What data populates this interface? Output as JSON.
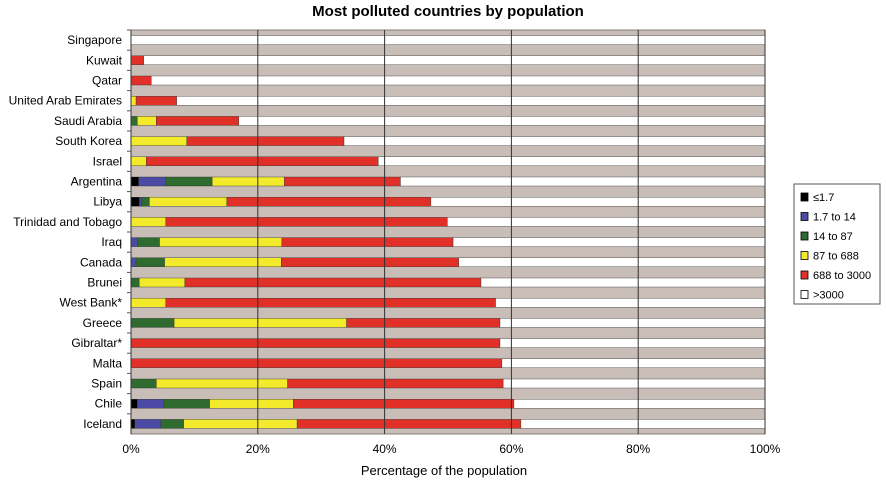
{
  "chart_data": {
    "type": "bar",
    "orientation": "horizontal",
    "stacked": true,
    "title": "Most polluted countries by population",
    "xlabel": "Percentage of the population",
    "ylabel": "",
    "xlim": [
      0,
      100
    ],
    "xticks": [
      "0%",
      "20%",
      "40%",
      "60%",
      "80%",
      "100%"
    ],
    "grid": true,
    "plot_background": "#c8bdb7",
    "legend_position": "right",
    "categories": [
      "Singapore",
      "Kuwait",
      "Qatar",
      "United Arab Emirates",
      "Saudi Arabia",
      "South Korea",
      "Israel",
      "Argentina",
      "Libya",
      "Trinidad and Tobago",
      "Iraq",
      "Canada",
      "Brunei",
      "West Bank*",
      "Greece",
      "Gibraltar*",
      "Malta",
      "Spain",
      "Chile",
      "Iceland"
    ],
    "series": [
      {
        "name": "≤1.7",
        "color": "#000000",
        "values": [
          0,
          0,
          0,
          0,
          0,
          0,
          0,
          1.2,
          1.3,
          0,
          0,
          0,
          0,
          0,
          0,
          0,
          0,
          0,
          1.0,
          0.6
        ]
      },
      {
        "name": "1.7 to 14",
        "color": "#4b4ba6",
        "values": [
          0,
          0,
          0,
          0,
          0,
          0,
          0,
          4.2,
          0.3,
          0,
          1.0,
          0.8,
          0,
          0,
          0,
          0,
          0,
          0,
          4.2,
          4.1
        ]
      },
      {
        "name": "14 to 87",
        "color": "#2f6b2f",
        "values": [
          0,
          0,
          0,
          0,
          1.0,
          0,
          0,
          7.4,
          1.3,
          0,
          3.5,
          4.5,
          1.3,
          0,
          6.8,
          0,
          0,
          4.0,
          7.2,
          3.6
        ]
      },
      {
        "name": "87 to 688",
        "color": "#f2ea2a",
        "values": [
          0,
          0,
          0,
          0.8,
          3.0,
          8.8,
          2.4,
          11.4,
          12.2,
          5.5,
          19.3,
          18.4,
          7.2,
          5.5,
          27.2,
          0,
          0,
          20.7,
          13.2,
          17.9
        ]
      },
      {
        "name": "688 to 3000",
        "color": "#e03027",
        "values": [
          0,
          2.0,
          3.2,
          6.4,
          13.0,
          24.8,
          36.6,
          18.3,
          32.2,
          44.4,
          27.0,
          28.0,
          46.7,
          52.0,
          24.2,
          58.2,
          58.5,
          34.0,
          34.8,
          35.3
        ]
      },
      {
        "name": ">3000",
        "color": "#ffffff",
        "values": [
          100,
          98.0,
          96.8,
          92.8,
          83.0,
          66.4,
          61.0,
          57.5,
          52.7,
          50.1,
          49.2,
          48.3,
          44.8,
          42.5,
          41.8,
          41.8,
          41.5,
          41.3,
          39.6,
          38.5
        ]
      }
    ]
  }
}
